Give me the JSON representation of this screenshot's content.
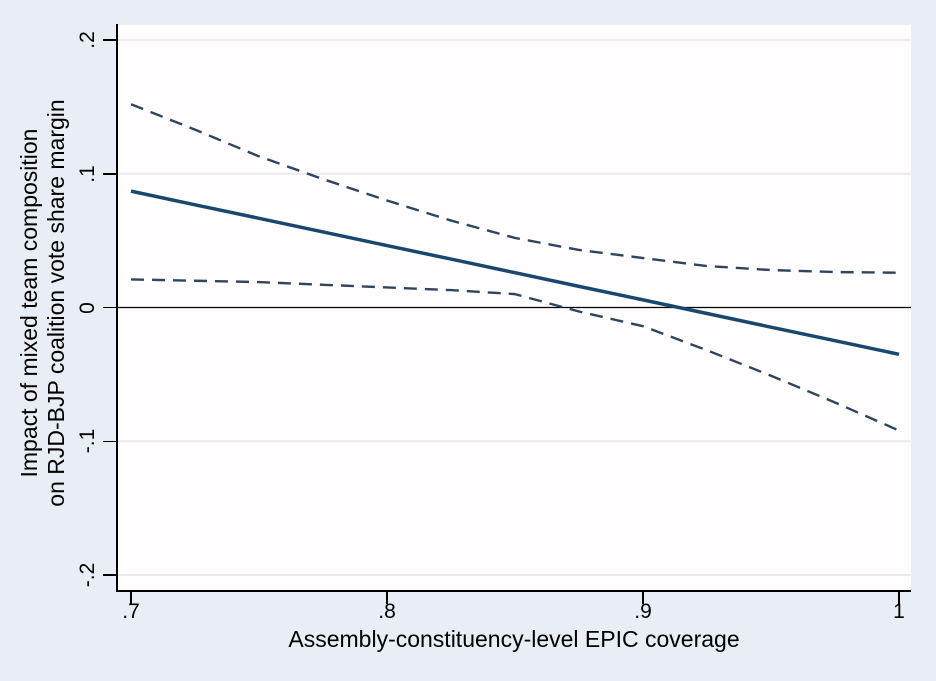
{
  "figure": {
    "background_color": "#e9edf6",
    "plot_background_color": "#fffdfd",
    "grid_color": "#eaeaef",
    "axis_color": "#000000"
  },
  "chart_data": {
    "type": "line",
    "title": "",
    "xlabel": "Assembly-constituency-level EPIC coverage",
    "ylabel_line1": "Impact of mixed team composition",
    "ylabel_line2": "on RJD-BJP coalition vote share margin",
    "xlim": [
      0.7,
      1.0
    ],
    "ylim": [
      -0.21,
      0.21
    ],
    "grid": "horizontal",
    "legend": "none",
    "reference_line_y": 0,
    "x_ticks": {
      "values": [
        0.7,
        0.8,
        0.9,
        1.0
      ],
      "labels": [
        ".7",
        ".8",
        ".9",
        "1"
      ]
    },
    "y_ticks": {
      "values": [
        0.2,
        0.1,
        0,
        -0.1,
        -0.2
      ],
      "labels": [
        ".2",
        ".1",
        "0",
        "-.1",
        "-.2"
      ]
    },
    "x": [
      0.7,
      0.725,
      0.75,
      0.775,
      0.8,
      0.825,
      0.85,
      0.875,
      0.9,
      0.925,
      0.95,
      0.975,
      1.0
    ],
    "series": [
      {
        "name": "point-estimate",
        "style": "solid",
        "color": "#1a476f",
        "width": 3.5,
        "y": [
          0.087,
          0.0768,
          0.0667,
          0.0565,
          0.0463,
          0.0362,
          0.026,
          0.0158,
          0.0057,
          -0.0045,
          -0.0147,
          -0.0248,
          -0.035
        ]
      },
      {
        "name": "upper-confidence-bound",
        "style": "dashed",
        "color": "#2e4560",
        "width": 2.4,
        "y": [
          0.152,
          0.133,
          0.113,
          0.096,
          0.08,
          0.065,
          0.052,
          0.043,
          0.037,
          0.031,
          0.028,
          0.0265,
          0.026
        ]
      },
      {
        "name": "lower-confidence-bound",
        "style": "dashed",
        "color": "#2e4560",
        "width": 2.4,
        "y": [
          0.021,
          0.02,
          0.019,
          0.017,
          0.015,
          0.013,
          0.01,
          -0.003,
          -0.014,
          -0.032,
          -0.051,
          -0.071,
          -0.092
        ]
      }
    ]
  }
}
